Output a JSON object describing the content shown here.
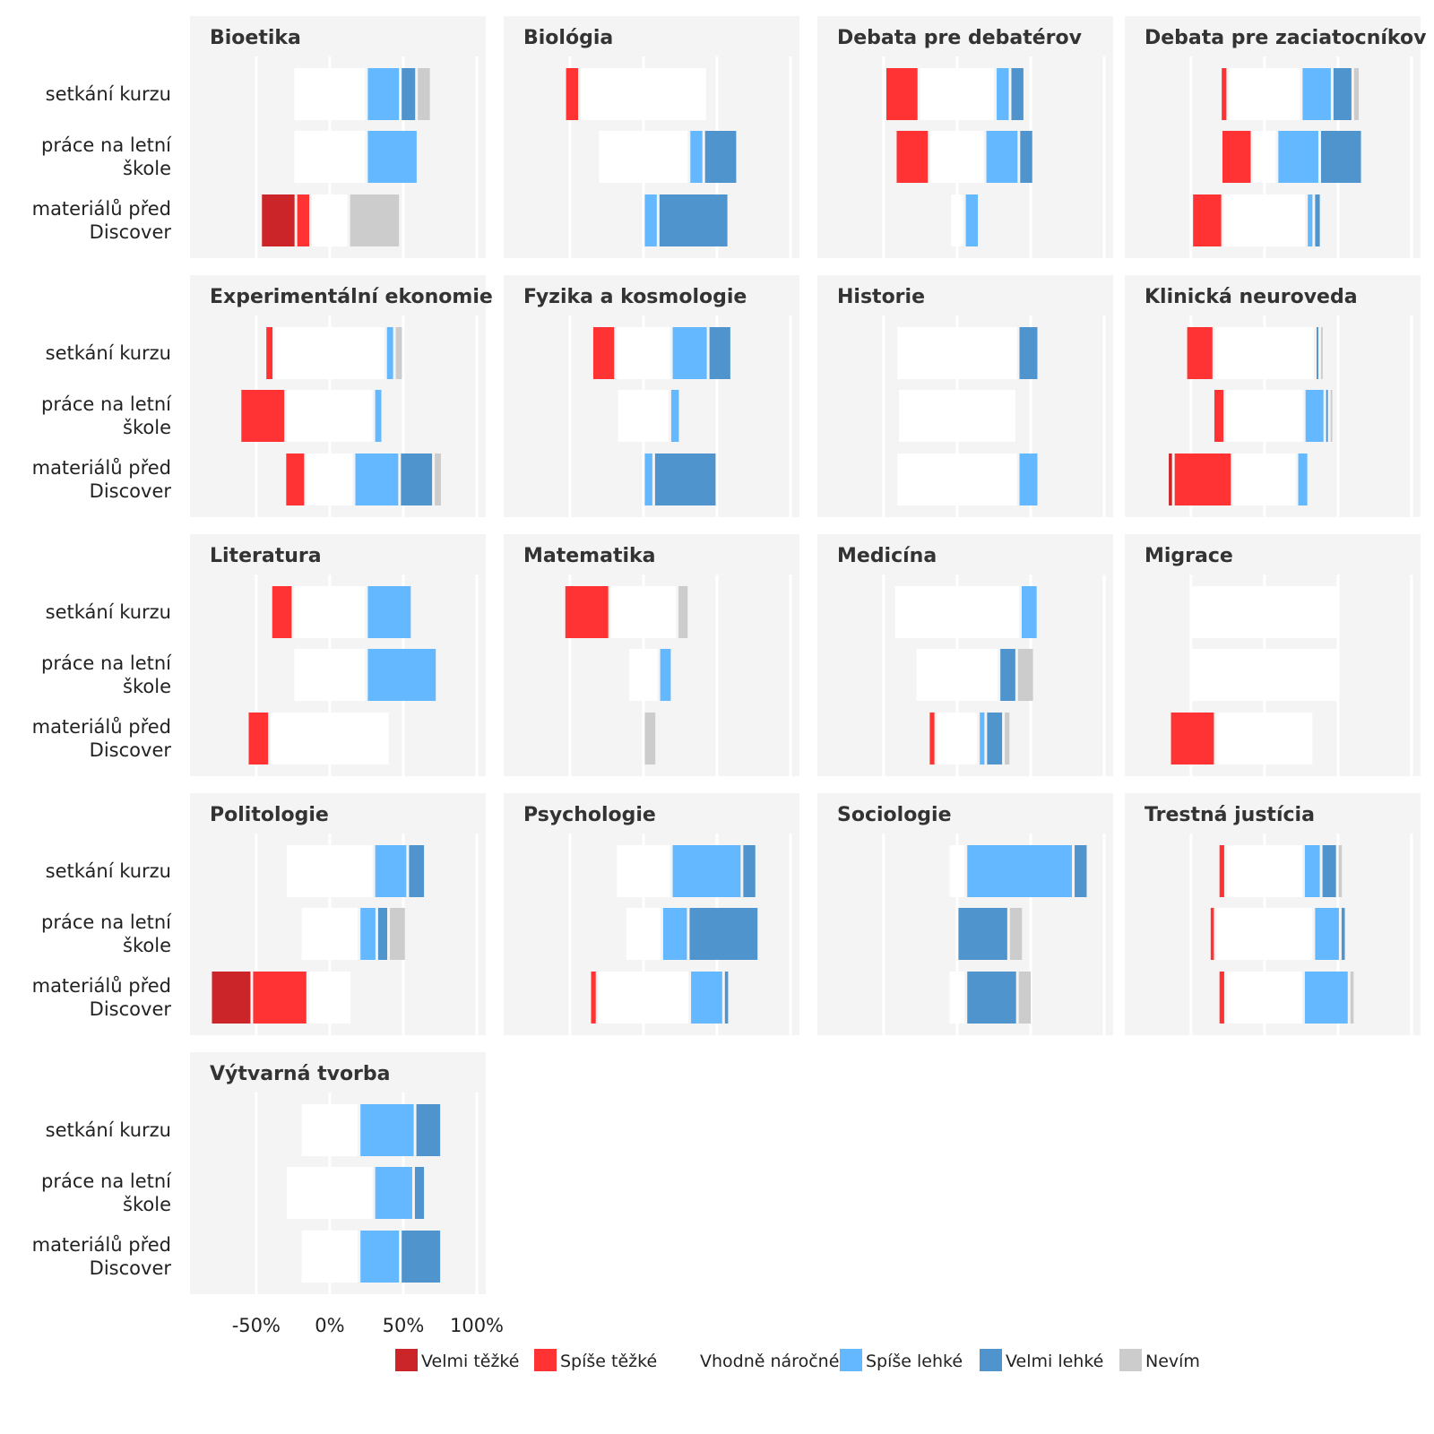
{
  "chart_data": {
    "type": "bar",
    "subtype": "diverging-stacked-horizontal",
    "rows": [
      "setkání kurzu",
      "práce na letní škole",
      "materiálů před Discover"
    ],
    "xlim": [
      -95,
      100
    ],
    "xticks": [
      -50,
      0,
      50,
      100
    ],
    "xtick_labels": [
      "-50%",
      "0%",
      "50%",
      "100%"
    ],
    "categories": [
      "Velmi těžké",
      "Spíše těžké",
      "Vhodně náročné",
      "Spíše lehké",
      "Velmi lehké",
      "Nevím"
    ],
    "colors": {
      "Velmi těžké": "#cc2529",
      "Spíše těžké": "#ff3333",
      "Vhodně náročné": "#ffffff",
      "Spíše lehké": "#63b8ff",
      "Velmi lehké": "#4f94cd",
      "Nevím": "#cccccc"
    },
    "legend_position": "bottom",
    "grid": true,
    "panels": [
      {
        "title": "Bioetika",
        "rows": [
          [
            0,
            0,
            50,
            23,
            11,
            10
          ],
          [
            0,
            0,
            50,
            35,
            0,
            0
          ],
          [
            24,
            10,
            26,
            0,
            0,
            35
          ]
        ]
      },
      {
        "title": "Biológia",
        "rows": [
          [
            0,
            10,
            87,
            0,
            0,
            0
          ],
          [
            0,
            0,
            62,
            10,
            23,
            0
          ],
          [
            0,
            0,
            0,
            10,
            48,
            0
          ]
        ]
      },
      {
        "title": "Debata pre debatérov",
        "rows": [
          [
            0,
            23,
            52,
            10,
            10,
            0
          ],
          [
            0,
            23,
            38,
            23,
            10,
            0
          ],
          [
            0,
            0,
            10,
            10,
            0,
            0
          ]
        ]
      },
      {
        "title": "Debata pre zaciatocníkov",
        "rows": [
          [
            0,
            5,
            50,
            21,
            14,
            5
          ],
          [
            0,
            21,
            17,
            29,
            29,
            0
          ],
          [
            0,
            21,
            57,
            5,
            5,
            0
          ]
        ]
      },
      {
        "title": "Experimentální ekonomie",
        "rows": [
          [
            0,
            6,
            76,
            6,
            0,
            6
          ],
          [
            0,
            31,
            60,
            6,
            0,
            0
          ],
          [
            0,
            14,
            33,
            31,
            23,
            6
          ]
        ]
      },
      {
        "title": "Fyzika a kosmologie",
        "rows": [
          [
            0,
            16,
            38,
            25,
            16,
            0
          ],
          [
            0,
            0,
            36,
            7,
            0,
            0
          ],
          [
            0,
            0,
            0,
            7,
            43,
            0
          ]
        ]
      },
      {
        "title": "Historie",
        "rows": [
          [
            0,
            0,
            83,
            0,
            14,
            0
          ],
          [
            0,
            0,
            81,
            0,
            0,
            0
          ],
          [
            0,
            0,
            83,
            14,
            0,
            0
          ]
        ]
      },
      {
        "title": "Klinická neuroveda",
        "rows": [
          [
            0,
            19,
            69,
            0,
            3,
            3
          ],
          [
            0,
            8,
            54,
            14,
            3,
            3
          ],
          [
            4,
            40,
            44,
            8,
            0,
            0
          ]
        ]
      },
      {
        "title": "Literatura",
        "rows": [
          [
            0,
            15,
            50,
            31,
            0,
            0
          ],
          [
            0,
            0,
            50,
            48,
            0,
            0
          ],
          [
            0,
            15,
            82,
            0,
            0,
            0
          ]
        ]
      },
      {
        "title": "Matematika",
        "rows": [
          [
            0,
            31,
            46,
            0,
            0,
            8
          ],
          [
            0,
            0,
            21,
            9,
            0,
            0
          ],
          [
            0,
            0,
            0,
            0,
            0,
            9
          ]
        ]
      },
      {
        "title": "Medicína",
        "rows": [
          [
            0,
            0,
            86,
            12,
            0,
            0
          ],
          [
            0,
            0,
            57,
            0,
            12,
            12
          ],
          [
            0,
            5,
            29,
            5,
            12,
            5
          ]
        ]
      },
      {
        "title": "Migrace",
        "rows": [
          [
            0,
            0,
            100,
            0,
            0,
            0
          ],
          [
            0,
            0,
            100,
            0,
            0,
            0
          ],
          [
            0,
            31,
            67,
            0,
            0,
            0
          ]
        ]
      },
      {
        "title": "Politologie",
        "rows": [
          [
            0,
            0,
            60,
            23,
            12,
            0
          ],
          [
            0,
            0,
            40,
            12,
            8,
            12
          ],
          [
            28,
            38,
            30,
            0,
            0,
            0
          ]
        ]
      },
      {
        "title": "Psychologie",
        "rows": [
          [
            0,
            0,
            38,
            48,
            10,
            0
          ],
          [
            0,
            0,
            25,
            18,
            48,
            0
          ],
          [
            0,
            5,
            63,
            23,
            4,
            0
          ]
        ]
      },
      {
        "title": "Sociologie",
        "rows": [
          [
            0,
            0,
            12,
            73,
            10,
            0
          ],
          [
            0,
            0,
            0,
            0,
            35,
            10
          ],
          [
            0,
            0,
            12,
            0,
            35,
            10
          ]
        ]
      },
      {
        "title": "Trestná justícia",
        "rows": [
          [
            0,
            5,
            53,
            12,
            11,
            4
          ],
          [
            0,
            4,
            67,
            18,
            4,
            0
          ],
          [
            0,
            5,
            53,
            31,
            0,
            4
          ]
        ]
      },
      {
        "title": "Výtvarná tvorba",
        "rows": [
          [
            0,
            0,
            40,
            38,
            18,
            0
          ],
          [
            0,
            0,
            60,
            27,
            8,
            0
          ],
          [
            0,
            0,
            40,
            28,
            28,
            0
          ]
        ]
      }
    ]
  }
}
